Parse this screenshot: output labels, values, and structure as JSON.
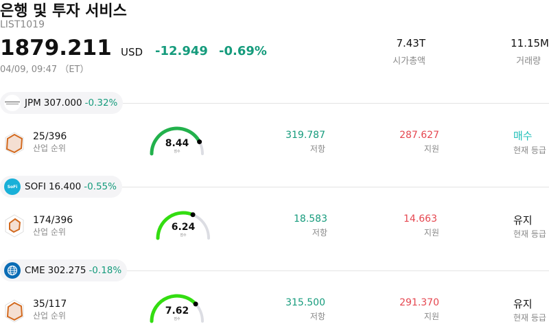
{
  "header": {
    "title": "은행 및 투자 서비스",
    "code": "LIST1019",
    "price": "1879.211",
    "currency": "USD",
    "change": "-12.949",
    "change_pct": "-0.69%",
    "datetime": "04/09, 09:47 （ET）",
    "market_cap_value": "7.43T",
    "market_cap_label": "시가총액",
    "volume_value": "11.15M",
    "volume_label": "거래량"
  },
  "colors": {
    "positive": "#159b7c",
    "negative": "#e5464f",
    "buy": "#1fbfb8"
  },
  "stocks": [
    {
      "symbol": "JPM",
      "price": "307.000",
      "change_pct": "-0.32%",
      "logo": "jpmorgan-logo",
      "rank": "25/396",
      "rank_label": "산업 순위",
      "score": "8.44",
      "score_caption": "점수",
      "score_fraction": 0.844,
      "gauge_color": "#22b14c",
      "resistance": "319.787",
      "resistance_label": "저항",
      "support": "287.627",
      "support_label": "지원",
      "rating": "매수",
      "rating_label": "현재 등급"
    },
    {
      "symbol": "SOFI",
      "price": "16.400",
      "change_pct": "-0.55%",
      "logo": "sofi-logo",
      "logo_text": "SoFi",
      "rank": "174/396",
      "rank_label": "산업 순위",
      "score": "6.24",
      "score_caption": "점수",
      "score_fraction": 0.624,
      "gauge_color": "#33dd11",
      "resistance": "18.583",
      "resistance_label": "저항",
      "support": "14.663",
      "support_label": "지원",
      "rating": "유지",
      "rating_label": "현재 등급"
    },
    {
      "symbol": "CME",
      "price": "302.275",
      "change_pct": "-0.18%",
      "logo": "cme-globe-logo",
      "rank": "35/117",
      "rank_label": "산업 순위",
      "score": "7.62",
      "score_caption": "점수",
      "score_fraction": 0.762,
      "gauge_color": "#33dd11",
      "resistance": "315.500",
      "resistance_label": "저항",
      "support": "291.370",
      "support_label": "지원",
      "rating": "유지",
      "rating_label": "현재 등급"
    }
  ]
}
